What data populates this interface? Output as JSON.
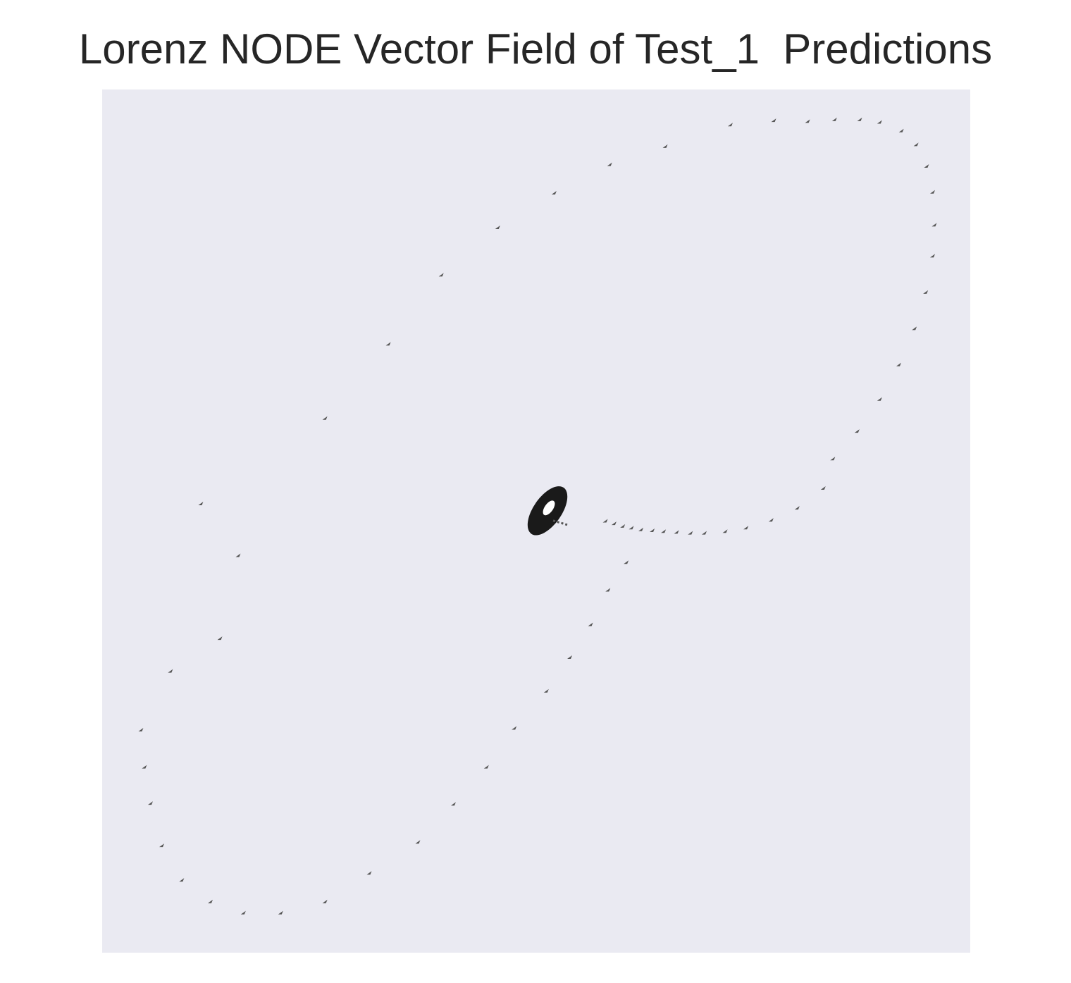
{
  "chart_data": {
    "type": "quiver",
    "title": "Lorenz NODE Vector Field of Test_1  Predictions",
    "xlabel": "",
    "ylabel": "",
    "grid": false,
    "axes_visible": false,
    "background_color": "#eaeaf2",
    "arrow_color": "#555555",
    "center_cluster_color": "#1a1a1a",
    "xlim": [
      0,
      100
    ],
    "ylim": [
      0,
      100
    ],
    "arrows": [
      {
        "x": 58.0,
        "y": 50.0
      },
      {
        "x": 59.0,
        "y": 49.7
      },
      {
        "x": 60.0,
        "y": 49.4
      },
      {
        "x": 61.0,
        "y": 49.2
      },
      {
        "x": 62.1,
        "y": 49.0
      },
      {
        "x": 63.4,
        "y": 48.9
      },
      {
        "x": 64.7,
        "y": 48.8
      },
      {
        "x": 66.2,
        "y": 48.7
      },
      {
        "x": 67.8,
        "y": 48.6
      },
      {
        "x": 69.4,
        "y": 48.6
      },
      {
        "x": 71.8,
        "y": 48.8
      },
      {
        "x": 74.2,
        "y": 49.2
      },
      {
        "x": 77.1,
        "y": 50.1
      },
      {
        "x": 80.1,
        "y": 51.5
      },
      {
        "x": 83.1,
        "y": 53.8
      },
      {
        "x": 84.2,
        "y": 57.2
      },
      {
        "x": 87.0,
        "y": 60.4
      },
      {
        "x": 89.6,
        "y": 64.1
      },
      {
        "x": 91.8,
        "y": 68.1
      },
      {
        "x": 93.6,
        "y": 72.3
      },
      {
        "x": 94.9,
        "y": 76.5
      },
      {
        "x": 95.7,
        "y": 80.7
      },
      {
        "x": 95.9,
        "y": 84.3
      },
      {
        "x": 95.7,
        "y": 88.1
      },
      {
        "x": 95.0,
        "y": 91.1
      },
      {
        "x": 93.8,
        "y": 93.6
      },
      {
        "x": 92.1,
        "y": 95.2
      },
      {
        "x": 89.6,
        "y": 96.2
      },
      {
        "x": 87.3,
        "y": 96.5
      },
      {
        "x": 84.4,
        "y": 96.5
      },
      {
        "x": 81.3,
        "y": 96.3
      },
      {
        "x": 77.4,
        "y": 96.4
      },
      {
        "x": 72.4,
        "y": 95.9
      },
      {
        "x": 64.9,
        "y": 93.4
      },
      {
        "x": 58.5,
        "y": 91.3
      },
      {
        "x": 52.1,
        "y": 88.0
      },
      {
        "x": 45.6,
        "y": 84.0
      },
      {
        "x": 39.1,
        "y": 78.5
      },
      {
        "x": 33.0,
        "y": 70.5
      },
      {
        "x": 25.7,
        "y": 61.9
      },
      {
        "x": 15.7,
        "y": 46.0
      },
      {
        "x": 13.6,
        "y": 36.4
      },
      {
        "x": 7.9,
        "y": 32.6
      },
      {
        "x": 4.9,
        "y": 21.5
      },
      {
        "x": 4.5,
        "y": 25.8
      },
      {
        "x": 5.6,
        "y": 17.3
      },
      {
        "x": 6.9,
        "y": 12.4
      },
      {
        "x": 9.2,
        "y": 8.4
      },
      {
        "x": 12.5,
        "y": 5.9
      },
      {
        "x": 16.3,
        "y": 4.6
      },
      {
        "x": 20.6,
        "y": 4.6
      },
      {
        "x": 25.7,
        "y": 5.9
      },
      {
        "x": 30.8,
        "y": 9.2
      },
      {
        "x": 36.4,
        "y": 12.8
      },
      {
        "x": 40.5,
        "y": 17.2
      },
      {
        "x": 44.3,
        "y": 21.5
      },
      {
        "x": 47.5,
        "y": 26.0
      },
      {
        "x": 51.2,
        "y": 30.3
      },
      {
        "x": 53.9,
        "y": 34.2
      },
      {
        "x": 56.3,
        "y": 38.0
      },
      {
        "x": 58.3,
        "y": 42.0
      },
      {
        "x": 60.4,
        "y": 45.2
      },
      {
        "x": 11.4,
        "y": 52.0
      }
    ],
    "center_cluster": {
      "x": 51.3,
      "y": 51.2
    }
  }
}
